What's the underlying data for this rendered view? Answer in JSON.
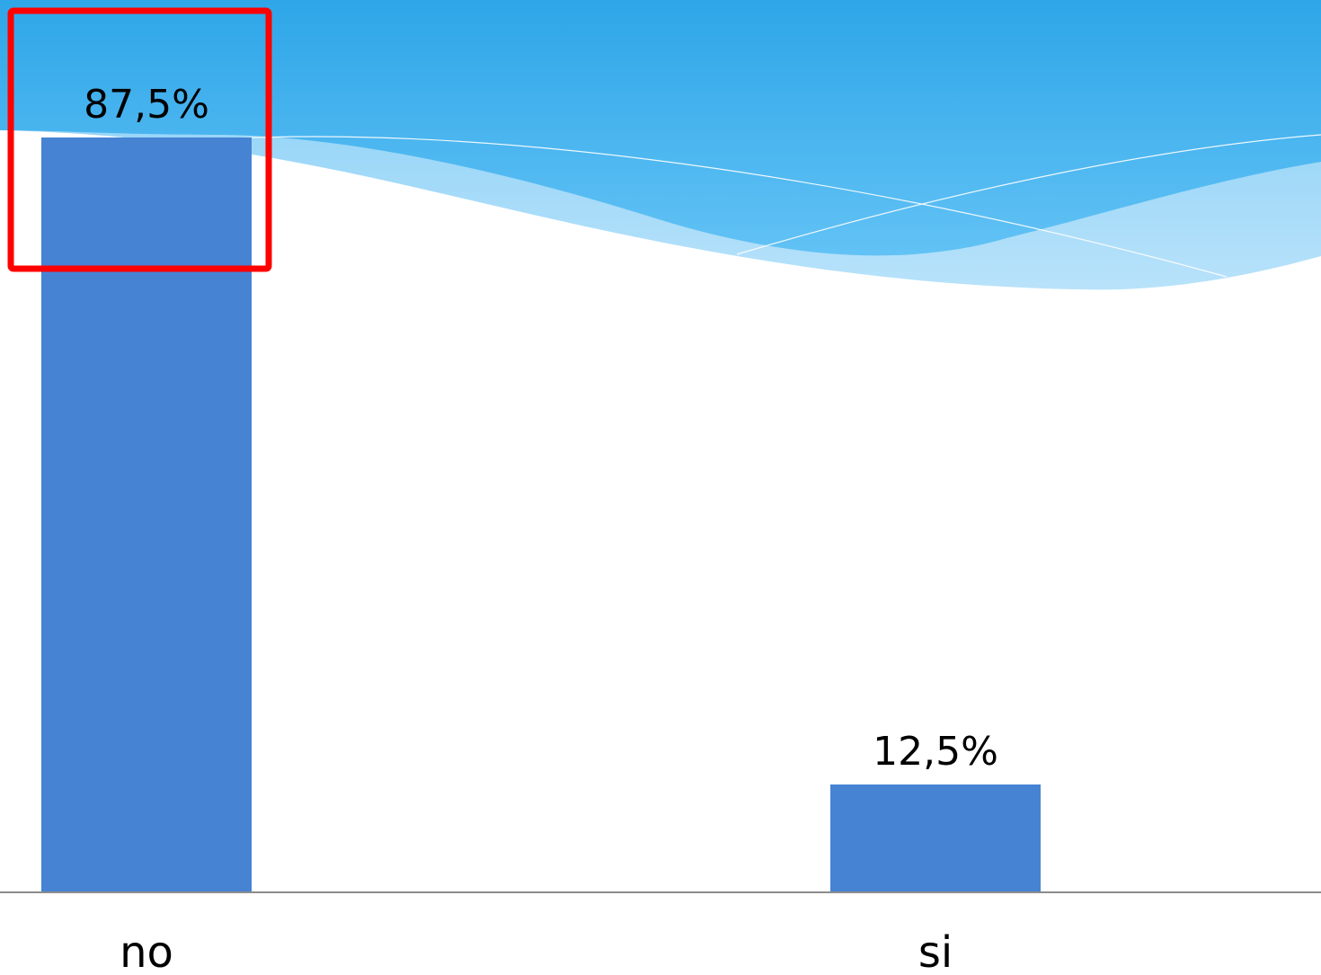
{
  "colors": {
    "bar": "#4683D3",
    "axis": "#8C8C8C",
    "highlight": "#FF0000",
    "wave_top": "#2EA8E8",
    "wave_mid": "#5BBDF2",
    "wave_light": "#A6DAF8"
  },
  "highlight": {
    "target": "no"
  },
  "chart_data": {
    "type": "bar",
    "categories": [
      "no",
      "si"
    ],
    "values": [
      87.5,
      12.5
    ],
    "data_labels": [
      "87,5%",
      "12,5%"
    ],
    "ylim": [
      0,
      100
    ],
    "grid": false,
    "legend": "none",
    "title": "",
    "xlabel": "",
    "ylabel": ""
  }
}
